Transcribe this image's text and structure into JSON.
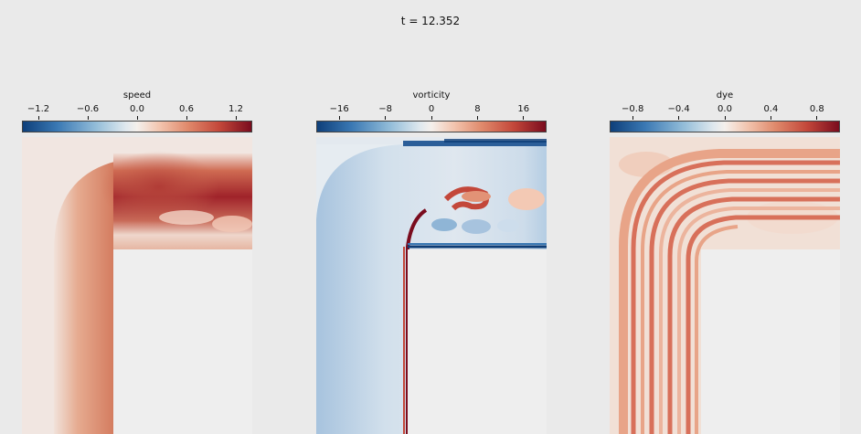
{
  "header": {
    "time_label": "t = 12.352"
  },
  "chart_data": [
    {
      "type": "heatmap",
      "title": "t = 12.352",
      "colorbar_label": "speed",
      "colorbar_ticks": [
        "−1.2",
        "−0.6",
        "0.0",
        "0.6",
        "1.2"
      ],
      "tick_values": [
        -1.2,
        -0.6,
        0.0,
        0.6,
        1.2
      ],
      "range": [
        -1.4,
        1.4
      ],
      "colormap": "RdBu_r",
      "field_description": "L-shaped channel: vertical leg with bend turning right into horizontal outlet; high speed band along channel core"
    },
    {
      "type": "heatmap",
      "colorbar_label": "vorticity",
      "colorbar_ticks": [
        "−16",
        "−8",
        "0",
        "8",
        "16"
      ],
      "tick_values": [
        -16,
        -8,
        0,
        8,
        16
      ],
      "range": [
        -20,
        20
      ],
      "colormap": "RdBu_r",
      "field_description": "Positive vorticity shear layer along inner wall, negative along outer wall, vortex shedding in outlet"
    },
    {
      "type": "heatmap",
      "colorbar_label": "dye",
      "colorbar_ticks": [
        "−0.8",
        "−0.4",
        "0.0",
        "0.4",
        "0.8"
      ],
      "tick_values": [
        -0.8,
        -0.4,
        0.0,
        0.4,
        0.8
      ],
      "range": [
        -1.0,
        1.0
      ],
      "colormap": "RdBu_r",
      "field_description": "Striped dye bands following the channel bend"
    }
  ]
}
